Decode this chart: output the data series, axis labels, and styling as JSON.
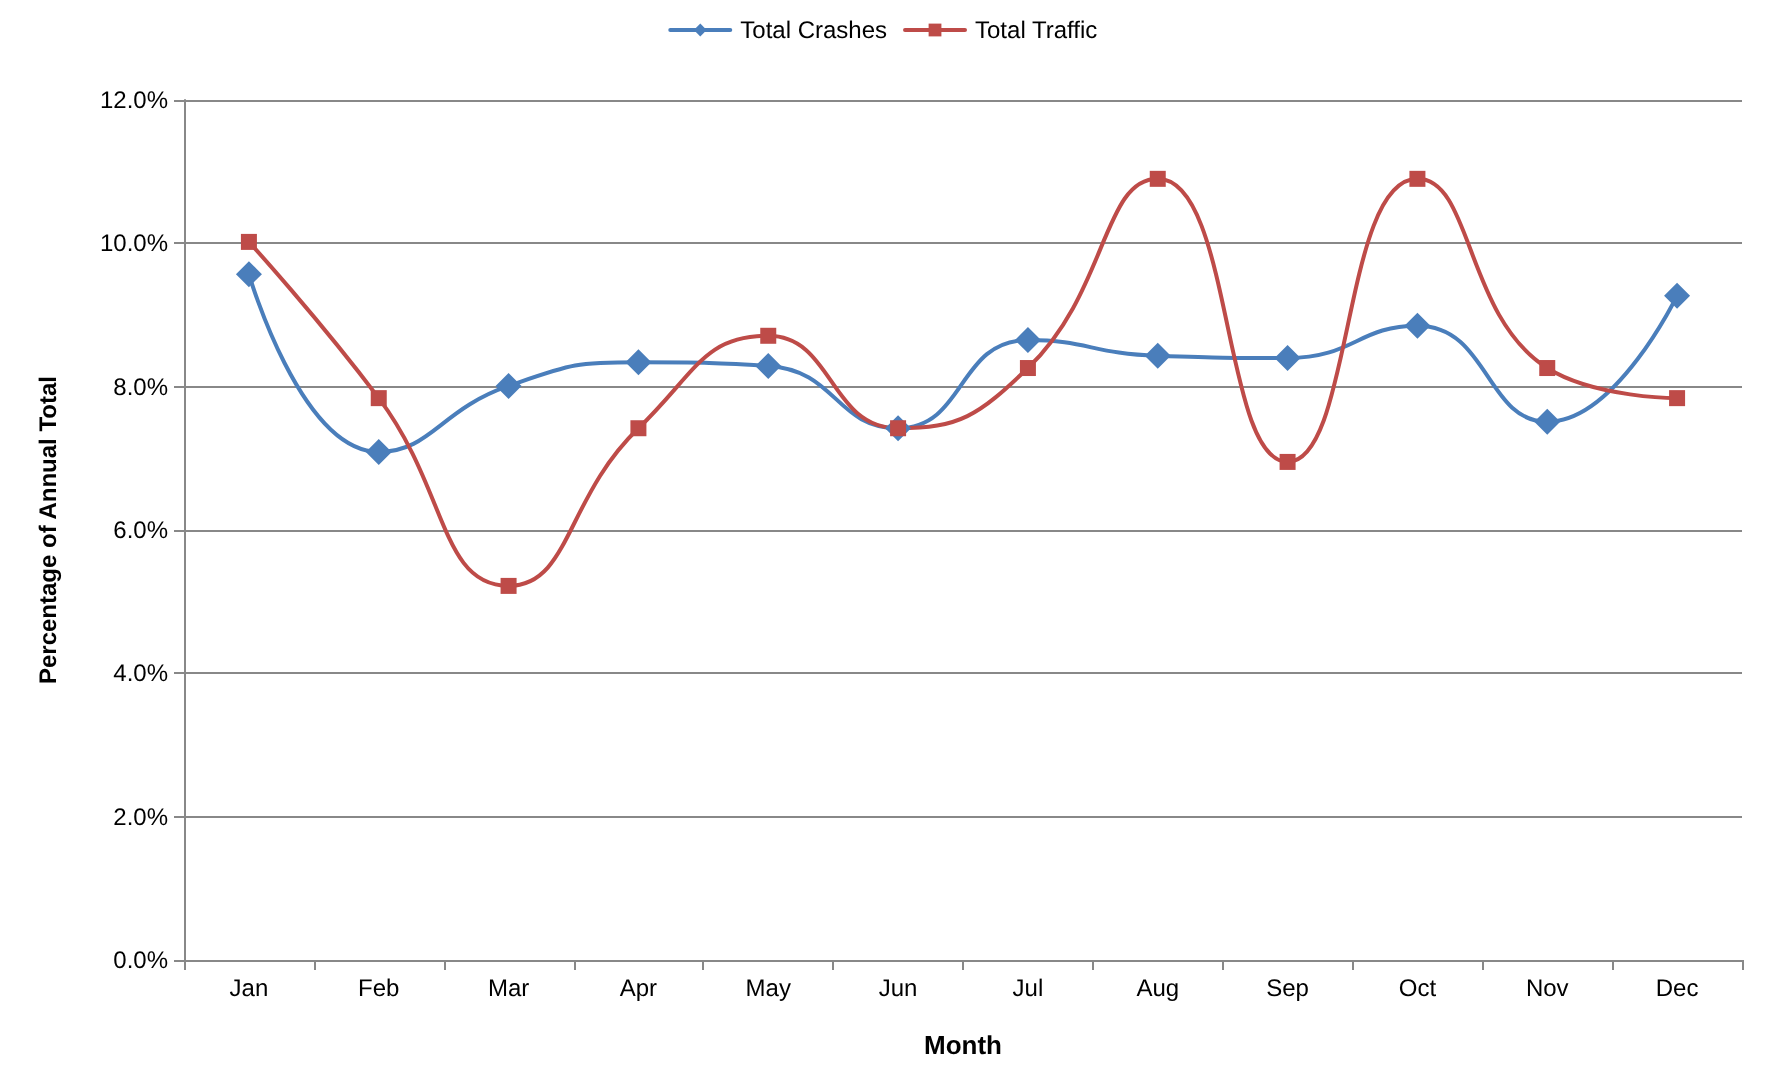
{
  "chart_data": {
    "type": "line",
    "xlabel": "Month",
    "ylabel": "Percentage of Annual Total",
    "categories": [
      "Jan",
      "Feb",
      "Mar",
      "Apr",
      "May",
      "Jun",
      "Jul",
      "Aug",
      "Sep",
      "Oct",
      "Nov",
      "Dec"
    ],
    "series": [
      {
        "name": "Total Crashes",
        "color": "#4a7ebb",
        "marker": "diamond",
        "values": [
          9.57,
          7.09,
          8.01,
          8.34,
          8.29,
          7.42,
          8.65,
          8.43,
          8.4,
          8.85,
          7.51,
          9.27
        ]
      },
      {
        "name": "Total Traffic",
        "color": "#be4b48",
        "marker": "square",
        "values": [
          10.02,
          7.84,
          5.22,
          7.42,
          8.71,
          7.42,
          8.26,
          10.9,
          6.95,
          10.9,
          8.26,
          7.84
        ]
      }
    ],
    "ylim": [
      0,
      12
    ],
    "yticks": [
      {
        "value": 0,
        "label": "0.0%"
      },
      {
        "value": 2,
        "label": "2.0%"
      },
      {
        "value": 4,
        "label": "4.0%"
      },
      {
        "value": 6,
        "label": "6.0%"
      },
      {
        "value": 8,
        "label": "8.0%"
      },
      {
        "value": 10,
        "label": "10.0%"
      },
      {
        "value": 12,
        "label": "12.0%"
      }
    ],
    "grid": "y",
    "legend": "top"
  }
}
